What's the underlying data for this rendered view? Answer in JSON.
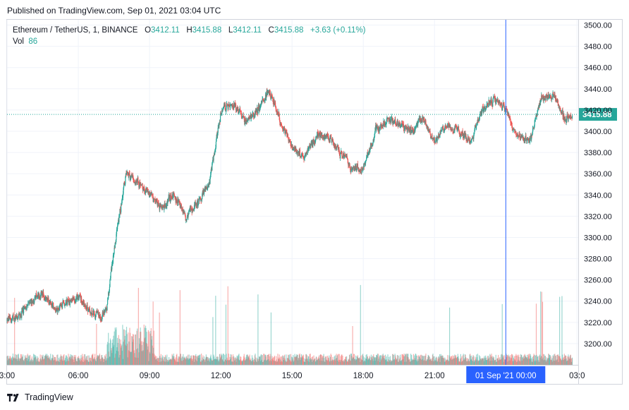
{
  "header": {
    "published": "Published on TradingView.com, Sep 01, 2021 03:04 UTC"
  },
  "legend": {
    "symbol": "Ethereum / TetherUS, 1, BINANCE",
    "o_label": "O",
    "o": "3412.11",
    "h_label": "H",
    "h": "3415.88",
    "l_label": "L",
    "l": "3412.11",
    "c_label": "C",
    "c": "3415.88",
    "change": "+3.63 (+0.11%)",
    "vol_label": "Vol",
    "vol": "86"
  },
  "footer": {
    "brand": "TradingView"
  },
  "colors": {
    "up": "#26a69a",
    "down": "#ef5350",
    "crosshair": "#2962ff",
    "grid": "#f0f3fa"
  },
  "chart_data": {
    "type": "candlestick",
    "symbol": "Ethereum / TetherUS",
    "interval": "1",
    "exchange": "BINANCE",
    "ylim": [
      3180,
      3505
    ],
    "y_ticks": [
      3200,
      3220,
      3240,
      3260,
      3280,
      3300,
      3320,
      3340,
      3360,
      3380,
      3400,
      3420,
      3440,
      3460,
      3480,
      3500
    ],
    "x_tick_labels": [
      "3:00",
      "06:00",
      "09:00",
      "12:00",
      "15:00",
      "18:00",
      "21:00",
      "03:0"
    ],
    "x_tick_hours": [
      3,
      6,
      9,
      12,
      15,
      18,
      21,
      27
    ],
    "last_price": "3415.88",
    "crosshair_label": "01 Sep '21   00:00",
    "crosshair_hour": 24,
    "price_path": [
      [
        3.0,
        3222
      ],
      [
        3.5,
        3226
      ],
      [
        4.0,
        3240
      ],
      [
        4.5,
        3248
      ],
      [
        5.0,
        3232
      ],
      [
        5.5,
        3238
      ],
      [
        6.0,
        3244
      ],
      [
        6.5,
        3230
      ],
      [
        7.0,
        3225
      ],
      [
        7.2,
        3235
      ],
      [
        7.5,
        3290
      ],
      [
        8.0,
        3360
      ],
      [
        8.5,
        3352
      ],
      [
        9.0,
        3340
      ],
      [
        9.5,
        3325
      ],
      [
        10.0,
        3340
      ],
      [
        10.5,
        3320
      ],
      [
        11.0,
        3332
      ],
      [
        11.5,
        3350
      ],
      [
        12.0,
        3420
      ],
      [
        12.5,
        3425
      ],
      [
        13.0,
        3410
      ],
      [
        13.5,
        3418
      ],
      [
        14.0,
        3440
      ],
      [
        14.5,
        3410
      ],
      [
        15.0,
        3385
      ],
      [
        15.5,
        3375
      ],
      [
        16.0,
        3395
      ],
      [
        16.5,
        3395
      ],
      [
        17.0,
        3380
      ],
      [
        17.5,
        3365
      ],
      [
        18.0,
        3365
      ],
      [
        18.5,
        3400
      ],
      [
        19.0,
        3410
      ],
      [
        19.5,
        3408
      ],
      [
        20.0,
        3400
      ],
      [
        20.5,
        3412
      ],
      [
        21.0,
        3390
      ],
      [
        21.5,
        3405
      ],
      [
        22.0,
        3400
      ],
      [
        22.5,
        3390
      ],
      [
        23.0,
        3420
      ],
      [
        23.5,
        3430
      ],
      [
        24.0,
        3420
      ],
      [
        24.5,
        3395
      ],
      [
        25.0,
        3390
      ],
      [
        25.5,
        3432
      ],
      [
        26.0,
        3435
      ],
      [
        26.5,
        3411
      ],
      [
        26.8,
        3416
      ]
    ]
  }
}
